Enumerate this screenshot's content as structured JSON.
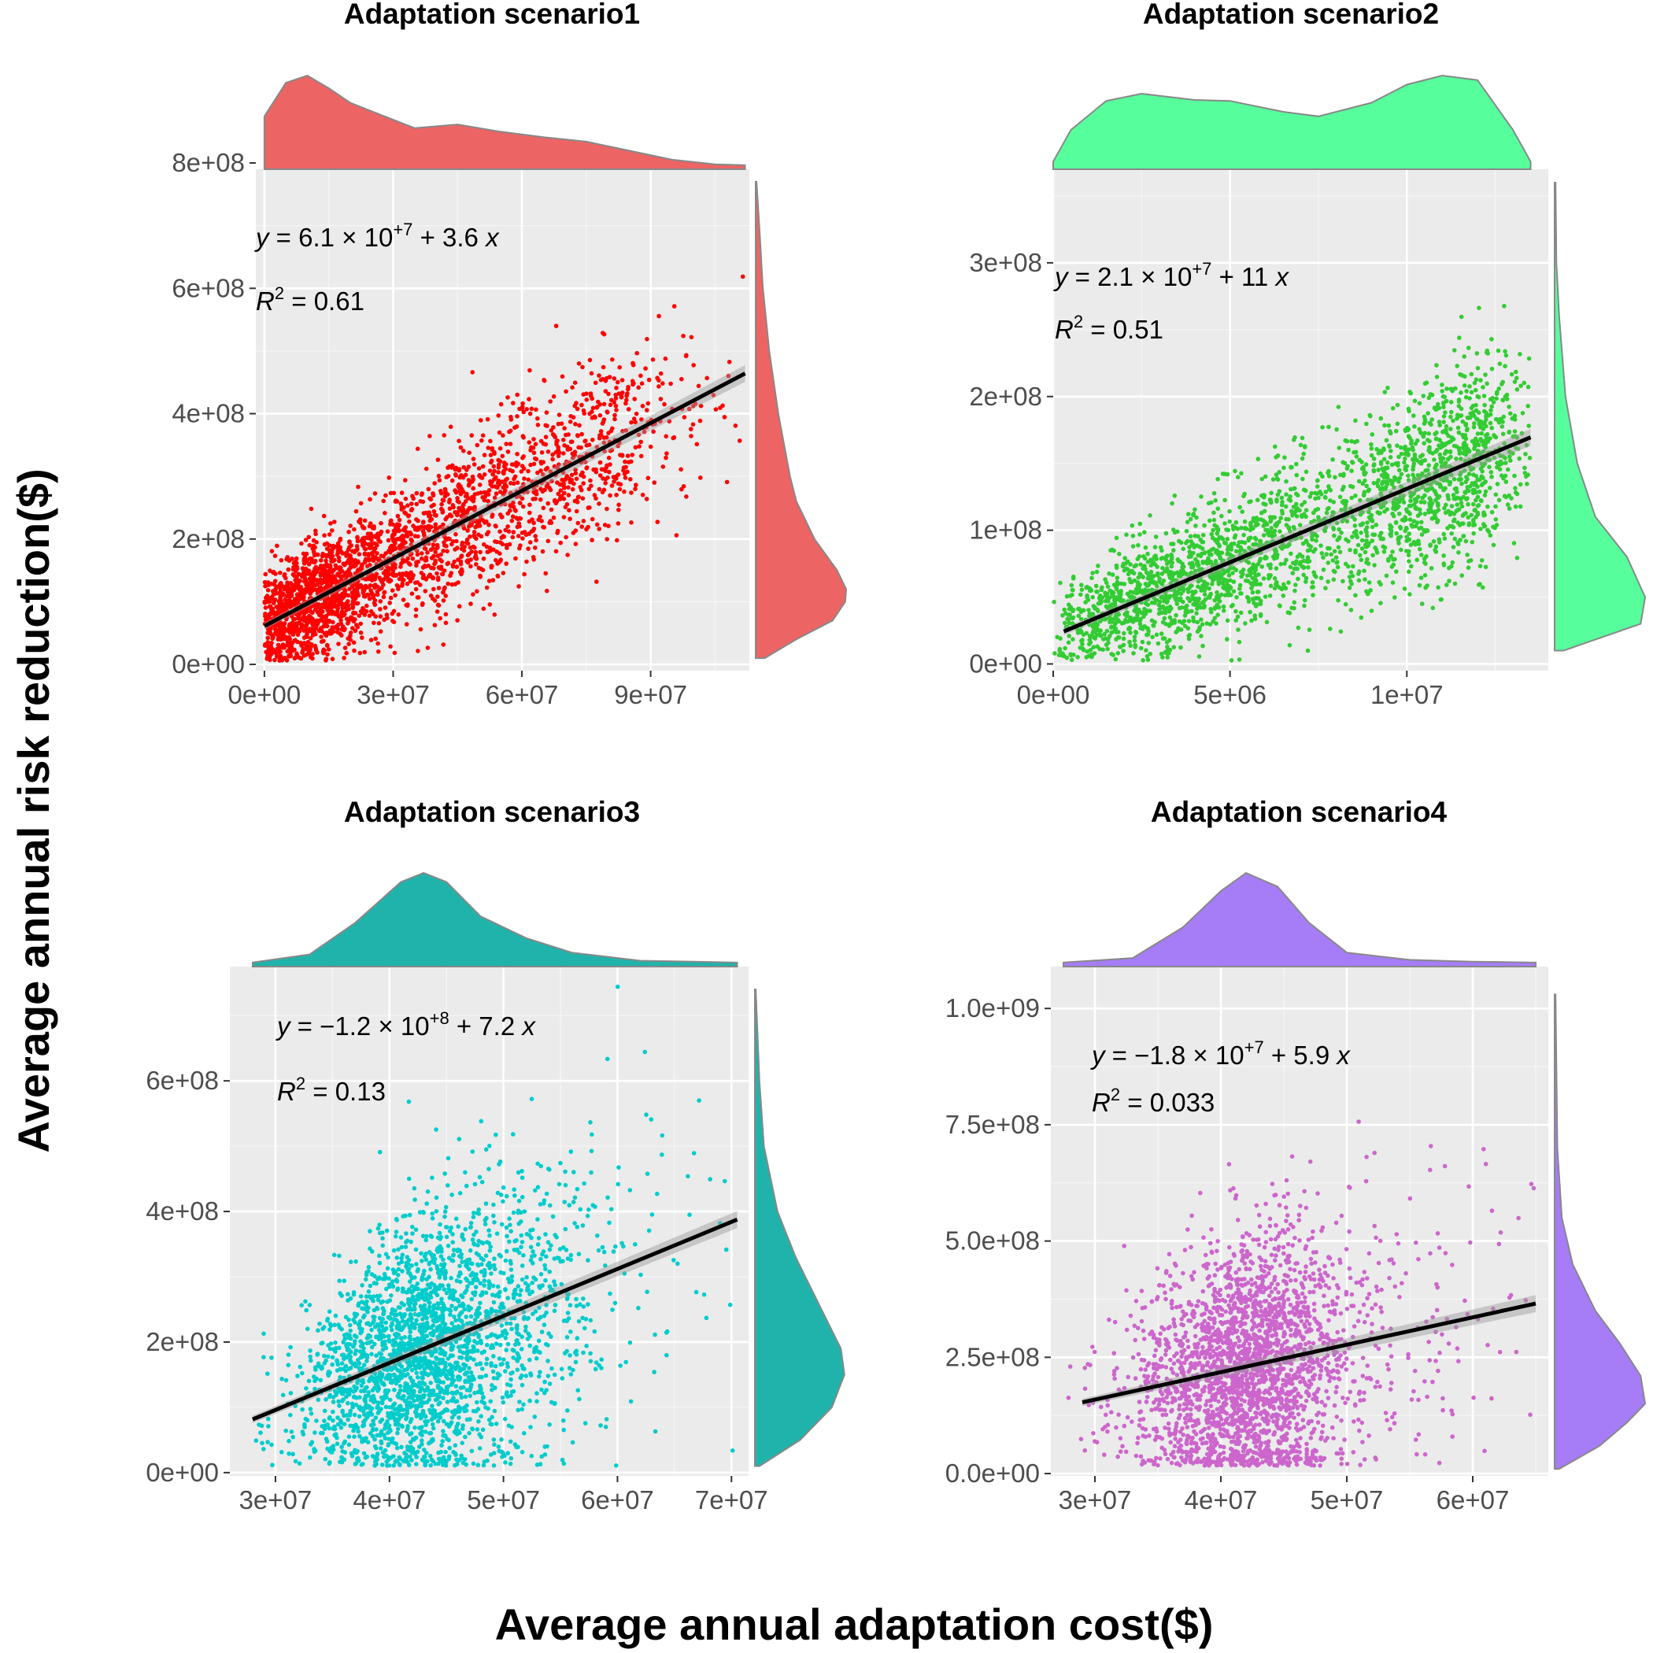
{
  "figure": {
    "ylabel": "Average annual risk reduction($)",
    "xlabel": "Average annual adaptation cost($)"
  },
  "chart_data": [
    {
      "type": "scatter",
      "title": "Adaptation scenario1",
      "point_color": "#ff0000",
      "density_color": "#ed6464",
      "xlim": [
        -2000000,
        113000000
      ],
      "ylim": [
        -10000000,
        790000000
      ],
      "x_ticks": [
        0,
        30000000,
        60000000,
        90000000
      ],
      "x_tick_labels": [
        "0e+00",
        "3e+07",
        "6e+07",
        "9e+07"
      ],
      "y_ticks": [
        0,
        200000000,
        400000000,
        600000000,
        800000000
      ],
      "y_tick_labels": [
        "0e+00",
        "2e+08",
        "4e+08",
        "6e+08",
        "8e+08"
      ],
      "fit": {
        "intercept": 61000000,
        "slope": 3.6,
        "x_range": [
          0,
          112000000
        ]
      },
      "equation": {
        "y": "y",
        "eq": " = 6.1",
        "times": " × 10",
        "exp": "+7",
        "tail": " + 3.6 ",
        "x": "x"
      },
      "r2": {
        "r": "R",
        "sup": "2",
        "value": " = 0.61"
      },
      "x_density": [
        [
          0,
          0.55
        ],
        [
          5000000,
          0.92
        ],
        [
          10000000,
          1.0
        ],
        [
          15000000,
          0.86
        ],
        [
          20000000,
          0.7
        ],
        [
          28000000,
          0.55
        ],
        [
          35000000,
          0.42
        ],
        [
          45000000,
          0.46
        ],
        [
          55000000,
          0.38
        ],
        [
          65000000,
          0.32
        ],
        [
          75000000,
          0.27
        ],
        [
          85000000,
          0.17
        ],
        [
          95000000,
          0.07
        ],
        [
          105000000,
          0.02
        ],
        [
          112000000,
          0.01
        ]
      ],
      "y_density": [
        [
          10000000,
          0.1
        ],
        [
          40000000,
          0.45
        ],
        [
          70000000,
          0.85
        ],
        [
          100000000,
          0.99
        ],
        [
          120000000,
          1.0
        ],
        [
          150000000,
          0.9
        ],
        [
          200000000,
          0.65
        ],
        [
          260000000,
          0.45
        ],
        [
          300000000,
          0.38
        ],
        [
          400000000,
          0.25
        ],
        [
          500000000,
          0.15
        ],
        [
          600000000,
          0.08
        ],
        [
          700000000,
          0.04
        ],
        [
          770000000,
          0.01
        ]
      ],
      "cloud": {
        "x_range": [
          0,
          112000000
        ],
        "resid_sd": 65000000,
        "n_points": 2600
      }
    },
    {
      "type": "scatter",
      "title": "Adaptation scenario2",
      "point_color": "#33cc33",
      "density_color": "#57ff9c",
      "xlim": [
        0,
        14000000
      ],
      "ylim": [
        -5000000,
        370000000
      ],
      "x_ticks": [
        0,
        5000000,
        10000000
      ],
      "x_tick_labels": [
        "0e+00",
        "5e+06",
        "1e+07"
      ],
      "y_ticks": [
        0,
        100000000,
        200000000,
        300000000
      ],
      "y_tick_labels": [
        "0e+00",
        "1e+08",
        "2e+08",
        "3e+08"
      ],
      "fit": {
        "intercept": 21000000,
        "slope": 11,
        "x_range": [
          300000,
          13500000
        ]
      },
      "equation": {
        "y": "y",
        "eq": " = 2.1",
        "times": " × 10",
        "exp": "+7",
        "tail": " + 11 ",
        "x": "x"
      },
      "r2": {
        "r": "R",
        "sup": "2",
        "value": " = 0.51"
      },
      "x_density": [
        [
          0,
          0.05
        ],
        [
          500000,
          0.4
        ],
        [
          1500000,
          0.72
        ],
        [
          2500000,
          0.8
        ],
        [
          4000000,
          0.73
        ],
        [
          5000000,
          0.72
        ],
        [
          6500000,
          0.6
        ],
        [
          7500000,
          0.55
        ],
        [
          9000000,
          0.7
        ],
        [
          10000000,
          0.9
        ],
        [
          11000000,
          1.0
        ],
        [
          12000000,
          0.95
        ],
        [
          13000000,
          0.4
        ],
        [
          13500000,
          0.05
        ]
      ],
      "y_density": [
        [
          10000000,
          0.1
        ],
        [
          30000000,
          0.95
        ],
        [
          50000000,
          1.0
        ],
        [
          80000000,
          0.8
        ],
        [
          110000000,
          0.45
        ],
        [
          150000000,
          0.25
        ],
        [
          200000000,
          0.12
        ],
        [
          260000000,
          0.05
        ],
        [
          300000000,
          0.02
        ],
        [
          360000000,
          0.01
        ]
      ],
      "cloud": {
        "x_range": [
          300000,
          13500000
        ],
        "resid_sd": 30000000,
        "n_points": 2600
      }
    },
    {
      "type": "scatter",
      "title": "Adaptation scenario3",
      "point_color": "#00cccc",
      "density_color": "#20b3ab",
      "xlim": [
        26000000,
        71500000
      ],
      "ylim": [
        -5000000,
        775000000
      ],
      "x_ticks": [
        30000000,
        40000000,
        50000000,
        60000000,
        70000000
      ],
      "x_tick_labels": [
        "3e+07",
        "4e+07",
        "5e+07",
        "6e+07",
        "7e+07"
      ],
      "y_ticks": [
        0,
        200000000,
        400000000,
        600000000
      ],
      "y_tick_labels": [
        "0e+00",
        "2e+08",
        "4e+08",
        "6e+08"
      ],
      "fit": {
        "intercept": -120000000,
        "slope": 7.2,
        "x_range": [
          28000000,
          70500000
        ]
      },
      "equation": {
        "y": "y",
        "eq": " = −1.2",
        "times": " × 10",
        "exp": "+8",
        "tail": " + 7.2 ",
        "x": "x"
      },
      "r2": {
        "r": "R",
        "sup": "2",
        "value": " = 0.13"
      },
      "x_density": [
        [
          28000000,
          0.01
        ],
        [
          33000000,
          0.1
        ],
        [
          37000000,
          0.45
        ],
        [
          41000000,
          0.9
        ],
        [
          43000000,
          1.0
        ],
        [
          45000000,
          0.9
        ],
        [
          48000000,
          0.52
        ],
        [
          52000000,
          0.28
        ],
        [
          56000000,
          0.12
        ],
        [
          62000000,
          0.03
        ],
        [
          70500000,
          0.01
        ]
      ],
      "y_density": [
        [
          10000000,
          0.05
        ],
        [
          50000000,
          0.5
        ],
        [
          100000000,
          0.85
        ],
        [
          150000000,
          0.99
        ],
        [
          190000000,
          0.95
        ],
        [
          260000000,
          0.7
        ],
        [
          330000000,
          0.45
        ],
        [
          400000000,
          0.25
        ],
        [
          500000000,
          0.1
        ],
        [
          600000000,
          0.05
        ],
        [
          740000000,
          0.01
        ]
      ],
      "cloud": {
        "x_range": [
          28000000,
          70500000
        ],
        "resid_sd": 110000000,
        "n_points": 2600
      }
    },
    {
      "type": "scatter",
      "title": "Adaptation scenario4",
      "point_color": "#cc66cc",
      "density_color": "#a67cf7",
      "xlim": [
        26500000,
        66000000
      ],
      "ylim": [
        -5000000,
        1090000000
      ],
      "x_ticks": [
        30000000,
        40000000,
        50000000,
        60000000
      ],
      "x_tick_labels": [
        "3e+07",
        "4e+07",
        "5e+07",
        "6e+07"
      ],
      "y_ticks": [
        0,
        250000000,
        500000000,
        750000000,
        1000000000
      ],
      "y_tick_labels": [
        "0.0e+00",
        "2.5e+08",
        "5.0e+08",
        "7.5e+08",
        "1.0e+09"
      ],
      "fit": {
        "intercept": -18000000,
        "slope": 5.9,
        "x_range": [
          29000000,
          65000000
        ]
      },
      "equation": {
        "y": "y",
        "eq": " = −1.8",
        "times": " × 10",
        "exp": "+7",
        "tail": " + 5.9 ",
        "x": "x"
      },
      "r2": {
        "r": "R",
        "sup": "2",
        "value": " = 0.033"
      },
      "x_density": [
        [
          27500000,
          0.01
        ],
        [
          33000000,
          0.06
        ],
        [
          37000000,
          0.4
        ],
        [
          40000000,
          0.8
        ],
        [
          42000000,
          1.0
        ],
        [
          44500000,
          0.85
        ],
        [
          47000000,
          0.45
        ],
        [
          50000000,
          0.12
        ],
        [
          55000000,
          0.04
        ],
        [
          60000000,
          0.02
        ],
        [
          65000000,
          0.01
        ]
      ],
      "y_density": [
        [
          10000000,
          0.05
        ],
        [
          60000000,
          0.5
        ],
        [
          110000000,
          0.8
        ],
        [
          150000000,
          1.0
        ],
        [
          210000000,
          0.95
        ],
        [
          280000000,
          0.72
        ],
        [
          350000000,
          0.45
        ],
        [
          450000000,
          0.2
        ],
        [
          550000000,
          0.08
        ],
        [
          700000000,
          0.03
        ],
        [
          1030000000,
          0.01
        ]
      ],
      "cloud": {
        "x_range": [
          29000000,
          65000000
        ],
        "resid_sd": 150000000,
        "n_points": 2600
      }
    }
  ]
}
